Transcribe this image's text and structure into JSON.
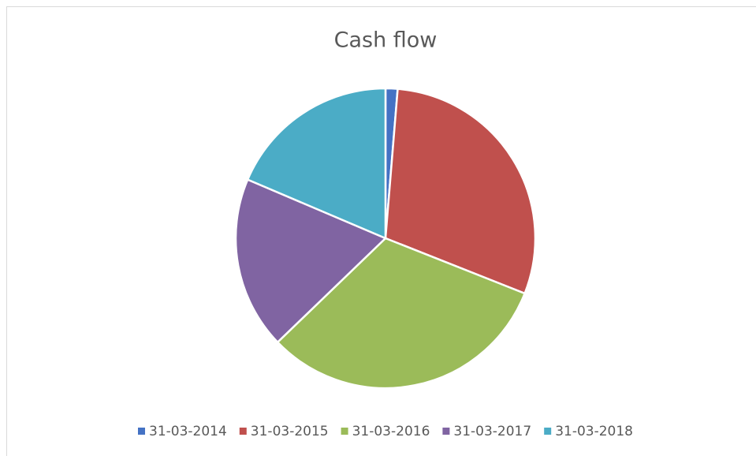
{
  "chart_data": {
    "type": "pie",
    "title": "Cash flow",
    "categories": [
      "31-03-2014",
      "31-03-2015",
      "31-03-2016",
      "31-03-2017",
      "31-03-2018"
    ],
    "values": [
      1.3,
      29.7,
      31.8,
      18.6,
      18.6
    ],
    "colors": [
      "#4472c4",
      "#c0504d",
      "#9bbb59",
      "#8064a2",
      "#4bacc6"
    ],
    "legend": "bottom"
  }
}
